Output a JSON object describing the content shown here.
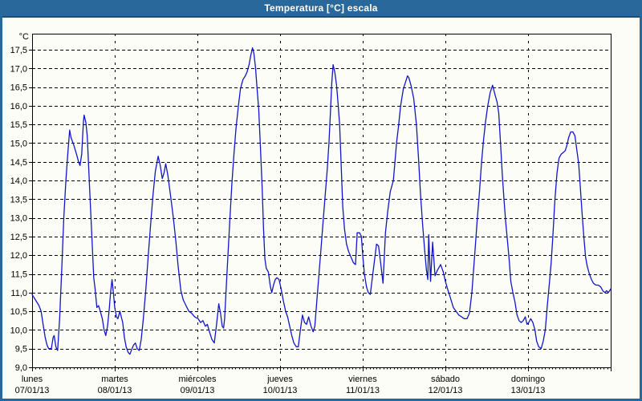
{
  "window": {
    "title": "Temperatura [°C] escala"
  },
  "colors": {
    "titlebar": "#28689b",
    "titlebar_edge": "#1a4e79",
    "window_border": "#28689b",
    "background": "#fcfdf6",
    "line": "#1216c8",
    "grid": "#000000",
    "text": "#000000"
  },
  "chart_data": {
    "type": "line",
    "title": "Temperatura [°C] escala",
    "unit_label": "°C",
    "ylim": [
      9.0,
      17.5
    ],
    "y_tick_step": 0.5,
    "y_tick_labels": [
      "17,5",
      "17,0",
      "16,5",
      "16,0",
      "15,5",
      "15,0",
      "14,5",
      "14,0",
      "13,5",
      "13,0",
      "12,5",
      "12,0",
      "11,5",
      "11,0",
      "10,5",
      "10,0",
      "9,5",
      "9,0"
    ],
    "x_days": [
      {
        "name": "lunes",
        "date": "07/01/13"
      },
      {
        "name": "martes",
        "date": "08/01/13"
      },
      {
        "name": "miércoles",
        "date": "09/01/13"
      },
      {
        "name": "jueves",
        "date": "10/01/13"
      },
      {
        "name": "viernes",
        "date": "11/01/13"
      },
      {
        "name": "sábado",
        "date": "12/01/13"
      },
      {
        "name": "domingo",
        "date": "13/01/13"
      }
    ],
    "x_range_hours": 168,
    "minor_tick_hours": 1,
    "grid": true,
    "legend": "none",
    "series": [
      {
        "name": "Temperatura",
        "unit": "°C",
        "points": [
          [
            0,
            10.95
          ],
          [
            1,
            10.8
          ],
          [
            2,
            10.65
          ],
          [
            2.6,
            10.5
          ],
          [
            3.2,
            10.15
          ],
          [
            3.8,
            9.8
          ],
          [
            4.3,
            9.6
          ],
          [
            4.8,
            9.5
          ],
          [
            5.6,
            9.5
          ],
          [
            6.1,
            9.8
          ],
          [
            6.4,
            9.85
          ],
          [
            6.9,
            9.55
          ],
          [
            7.4,
            9.45
          ],
          [
            8,
            10.3
          ],
          [
            8.6,
            11.6
          ],
          [
            9.2,
            13.0
          ],
          [
            9.8,
            14.0
          ],
          [
            10.4,
            14.75
          ],
          [
            10.9,
            15.35
          ],
          [
            11.3,
            15.15
          ],
          [
            12.1,
            14.95
          ],
          [
            12.9,
            14.7
          ],
          [
            13.5,
            14.5
          ],
          [
            13.9,
            14.4
          ],
          [
            14.4,
            14.7
          ],
          [
            14.9,
            15.55
          ],
          [
            15.1,
            15.75
          ],
          [
            15.6,
            15.55
          ],
          [
            16,
            15.2
          ],
          [
            16.4,
            14.4
          ],
          [
            16.9,
            13.4
          ],
          [
            17.4,
            12.4
          ],
          [
            17.9,
            11.4
          ],
          [
            18.3,
            11.1
          ],
          [
            18.8,
            10.6
          ],
          [
            19.3,
            10.65
          ],
          [
            19.8,
            10.5
          ],
          [
            20.4,
            10.3
          ],
          [
            20.9,
            10.0
          ],
          [
            21.4,
            9.85
          ],
          [
            21.9,
            10.1
          ],
          [
            22.4,
            10.55
          ],
          [
            22.8,
            11.0
          ],
          [
            23.2,
            11.35
          ],
          [
            23.7,
            10.9
          ],
          [
            24,
            10.6
          ],
          [
            24.5,
            10.35
          ],
          [
            24.9,
            10.3
          ],
          [
            25.5,
            10.5
          ],
          [
            26.3,
            10.2
          ],
          [
            26.8,
            9.8
          ],
          [
            27.3,
            9.55
          ],
          [
            27.9,
            9.4
          ],
          [
            28.4,
            9.35
          ],
          [
            29,
            9.5
          ],
          [
            29.5,
            9.6
          ],
          [
            30,
            9.65
          ],
          [
            30.5,
            9.5
          ],
          [
            31.1,
            9.45
          ],
          [
            31.7,
            9.75
          ],
          [
            32.3,
            10.3
          ],
          [
            33,
            11.05
          ],
          [
            33.7,
            11.95
          ],
          [
            34.4,
            12.8
          ],
          [
            35.1,
            13.6
          ],
          [
            35.8,
            14.25
          ],
          [
            36.6,
            14.65
          ],
          [
            37.2,
            14.4
          ],
          [
            37.8,
            14.05
          ],
          [
            38.3,
            14.2
          ],
          [
            38.8,
            14.45
          ],
          [
            39.4,
            14.15
          ],
          [
            40.2,
            13.6
          ],
          [
            41,
            13.0
          ],
          [
            41.7,
            12.4
          ],
          [
            42.4,
            11.7
          ],
          [
            43.2,
            11.05
          ],
          [
            43.9,
            10.8
          ],
          [
            44.7,
            10.65
          ],
          [
            45.5,
            10.5
          ],
          [
            46.3,
            10.45
          ],
          [
            47.2,
            10.35
          ],
          [
            48.2,
            10.3
          ],
          [
            48.9,
            10.2
          ],
          [
            49.6,
            10.25
          ],
          [
            50.3,
            10.1
          ],
          [
            50.9,
            10.15
          ],
          [
            51.5,
            9.95
          ],
          [
            52.2,
            9.75
          ],
          [
            52.9,
            9.65
          ],
          [
            53.5,
            10.1
          ],
          [
            54.2,
            10.7
          ],
          [
            54.7,
            10.45
          ],
          [
            55.2,
            10.1
          ],
          [
            55.6,
            10.05
          ],
          [
            55.9,
            10.3
          ],
          [
            56.3,
            11.0
          ],
          [
            56.8,
            11.9
          ],
          [
            57.4,
            12.9
          ],
          [
            58,
            13.9
          ],
          [
            58.6,
            14.7
          ],
          [
            59.2,
            15.4
          ],
          [
            59.9,
            16.0
          ],
          [
            60.5,
            16.45
          ],
          [
            61.2,
            16.7
          ],
          [
            61.9,
            16.8
          ],
          [
            62.4,
            16.9
          ],
          [
            63,
            17.1
          ],
          [
            63.5,
            17.35
          ],
          [
            64,
            17.55
          ],
          [
            64.4,
            17.4
          ],
          [
            64.9,
            17.0
          ],
          [
            65.3,
            16.5
          ],
          [
            65.8,
            15.9
          ],
          [
            66.3,
            14.9
          ],
          [
            66.8,
            13.8
          ],
          [
            67.2,
            12.7
          ],
          [
            67.6,
            11.9
          ],
          [
            68,
            11.65
          ],
          [
            68.6,
            11.55
          ],
          [
            69.2,
            11.15
          ],
          [
            69.6,
            11.0
          ],
          [
            70.1,
            11.2
          ],
          [
            70.6,
            11.35
          ],
          [
            71.1,
            11.4
          ],
          [
            71.7,
            11.35
          ],
          [
            72.3,
            11.1
          ],
          [
            72.9,
            10.8
          ],
          [
            73.6,
            10.5
          ],
          [
            74.2,
            10.35
          ],
          [
            74.8,
            10.1
          ],
          [
            75.4,
            9.85
          ],
          [
            76,
            9.65
          ],
          [
            76.7,
            9.55
          ],
          [
            77.3,
            9.55
          ],
          [
            77.9,
            10.0
          ],
          [
            78.5,
            10.4
          ],
          [
            79.1,
            10.2
          ],
          [
            79.7,
            10.15
          ],
          [
            80.3,
            10.35
          ],
          [
            81,
            10.1
          ],
          [
            81.6,
            9.95
          ],
          [
            82.1,
            10.1
          ],
          [
            82.7,
            10.8
          ],
          [
            83.3,
            11.5
          ],
          [
            83.9,
            12.2
          ],
          [
            84.5,
            12.9
          ],
          [
            85.1,
            13.6
          ],
          [
            85.7,
            14.3
          ],
          [
            86.2,
            15.0
          ],
          [
            86.6,
            15.8
          ],
          [
            87,
            16.6
          ],
          [
            87.4,
            17.1
          ],
          [
            87.9,
            16.9
          ],
          [
            88.4,
            16.55
          ],
          [
            88.9,
            16.0
          ],
          [
            89.3,
            15.5
          ],
          [
            89.7,
            14.5
          ],
          [
            90.2,
            13.3
          ],
          [
            90.7,
            12.7
          ],
          [
            91.3,
            12.3
          ],
          [
            91.9,
            12.1
          ],
          [
            92.6,
            11.95
          ],
          [
            93.3,
            11.8
          ],
          [
            93.9,
            11.75
          ],
          [
            94.4,
            12.6
          ],
          [
            95.1,
            12.6
          ],
          [
            95.6,
            12.5
          ],
          [
            96.1,
            11.9
          ],
          [
            96.5,
            11.5
          ],
          [
            97.1,
            11.15
          ],
          [
            97.6,
            11.0
          ],
          [
            98.2,
            10.95
          ],
          [
            98.8,
            11.4
          ],
          [
            99.4,
            11.85
          ],
          [
            100,
            12.3
          ],
          [
            100.6,
            12.25
          ],
          [
            101.2,
            11.8
          ],
          [
            101.9,
            11.25
          ],
          [
            102.6,
            12.6
          ],
          [
            103.3,
            13.2
          ],
          [
            104,
            13.7
          ],
          [
            104.9,
            14.0
          ],
          [
            105.8,
            15.0
          ],
          [
            106.4,
            15.45
          ],
          [
            107,
            16.0
          ],
          [
            107.8,
            16.45
          ],
          [
            109,
            16.8
          ],
          [
            109.4,
            16.75
          ],
          [
            110,
            16.55
          ],
          [
            110.8,
            16.2
          ],
          [
            111.6,
            15.5
          ],
          [
            112.2,
            14.6
          ],
          [
            112.8,
            13.6
          ],
          [
            113.4,
            12.8
          ],
          [
            114,
            12.1
          ],
          [
            114.5,
            11.6
          ],
          [
            114.9,
            11.35
          ],
          [
            115.15,
            12.55
          ],
          [
            115.7,
            11.3
          ],
          [
            116.3,
            12.35
          ],
          [
            117,
            11.45
          ],
          [
            117.7,
            11.6
          ],
          [
            118.6,
            11.75
          ],
          [
            119.4,
            11.55
          ],
          [
            120,
            11.3
          ],
          [
            120.8,
            11.05
          ],
          [
            121.5,
            10.85
          ],
          [
            122.3,
            10.6
          ],
          [
            123.1,
            10.5
          ],
          [
            123.9,
            10.4
          ],
          [
            124.7,
            10.35
          ],
          [
            125.5,
            10.3
          ],
          [
            126.3,
            10.3
          ],
          [
            127,
            10.45
          ],
          [
            127.7,
            11.0
          ],
          [
            128.5,
            12.0
          ],
          [
            129.2,
            12.9
          ],
          [
            129.9,
            13.7
          ],
          [
            130.5,
            14.5
          ],
          [
            131.1,
            15.1
          ],
          [
            131.7,
            15.6
          ],
          [
            132.3,
            16.0
          ],
          [
            133,
            16.35
          ],
          [
            133.7,
            16.55
          ],
          [
            134.4,
            16.3
          ],
          [
            135,
            16.1
          ],
          [
            135.5,
            15.8
          ],
          [
            136,
            15.0
          ],
          [
            136.5,
            14.2
          ],
          [
            137,
            13.5
          ],
          [
            137.5,
            12.9
          ],
          [
            138,
            12.4
          ],
          [
            138.5,
            11.9
          ],
          [
            139,
            11.3
          ],
          [
            139.6,
            11.0
          ],
          [
            140.2,
            10.75
          ],
          [
            140.8,
            10.4
          ],
          [
            141.4,
            10.25
          ],
          [
            142,
            10.2
          ],
          [
            142.6,
            10.25
          ],
          [
            143.2,
            10.35
          ],
          [
            143.7,
            10.15
          ],
          [
            144.2,
            10.2
          ],
          [
            144.8,
            10.3
          ],
          [
            145.4,
            10.2
          ],
          [
            146,
            10.0
          ],
          [
            146.5,
            9.7
          ],
          [
            147.1,
            9.55
          ],
          [
            147.8,
            9.5
          ],
          [
            148.4,
            9.7
          ],
          [
            149,
            10.0
          ],
          [
            149.6,
            10.65
          ],
          [
            150.2,
            11.25
          ],
          [
            150.7,
            11.8
          ],
          [
            151.2,
            12.5
          ],
          [
            151.8,
            13.5
          ],
          [
            152.4,
            14.2
          ],
          [
            153,
            14.6
          ],
          [
            153.6,
            14.7
          ],
          [
            154.2,
            14.75
          ],
          [
            154.8,
            14.8
          ],
          [
            155.3,
            14.95
          ],
          [
            155.8,
            15.15
          ],
          [
            156.4,
            15.3
          ],
          [
            157,
            15.3
          ],
          [
            157.6,
            15.2
          ],
          [
            158.2,
            14.8
          ],
          [
            158.7,
            14.45
          ],
          [
            159.2,
            13.8
          ],
          [
            159.7,
            13.1
          ],
          [
            160.2,
            12.5
          ],
          [
            160.7,
            11.95
          ],
          [
            161.2,
            11.7
          ],
          [
            161.8,
            11.5
          ],
          [
            162.4,
            11.35
          ],
          [
            163,
            11.25
          ],
          [
            163.7,
            11.2
          ],
          [
            164.4,
            11.2
          ],
          [
            165.1,
            11.15
          ],
          [
            165.7,
            11.05
          ],
          [
            166.3,
            11.0
          ],
          [
            166.8,
            11.05
          ],
          [
            167.3,
            11.0
          ],
          [
            167.7,
            11.05
          ],
          [
            168,
            11.1
          ]
        ]
      }
    ]
  }
}
